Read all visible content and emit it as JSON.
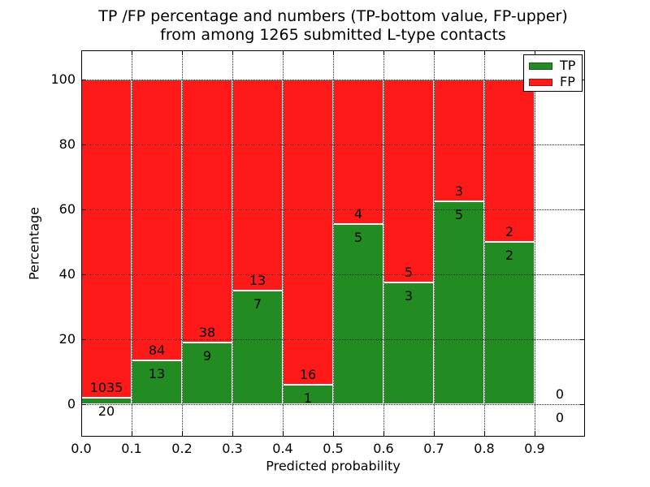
{
  "chart_data": {
    "type": "bar",
    "stacked": true,
    "title_lines": [
      "TP /FP percentage and numbers (TP-bottom value, FP-upper)",
      "from among 1265 submitted L-type contacts"
    ],
    "xlabel": "Predicted probability",
    "ylabel": "Percentage",
    "xlim": [
      0.0,
      1.0
    ],
    "ylim": [
      -10,
      110
    ],
    "grid": true,
    "bar_width": 0.1,
    "colors": {
      "tp": "#228b22",
      "fp": "#ff1a1a",
      "bar_edge": "#ffffff",
      "text": "#000000"
    },
    "legend": {
      "position": "upper right",
      "entries": [
        {
          "label": "TP",
          "color_key": "tp"
        },
        {
          "label": "FP",
          "color_key": "fp"
        }
      ]
    },
    "xticks": [
      {
        "v": 0.0,
        "label": "0.0"
      },
      {
        "v": 0.1,
        "label": "0.1"
      },
      {
        "v": 0.2,
        "label": "0.2"
      },
      {
        "v": 0.3,
        "label": "0.3"
      },
      {
        "v": 0.4,
        "label": "0.4"
      },
      {
        "v": 0.5,
        "label": "0.5"
      },
      {
        "v": 0.6,
        "label": "0.6"
      },
      {
        "v": 0.7,
        "label": "0.7"
      },
      {
        "v": 0.8,
        "label": "0.8"
      },
      {
        "v": 0.9,
        "label": "0.9"
      }
    ],
    "yticks": [
      {
        "v": 0,
        "label": "0"
      },
      {
        "v": 20,
        "label": "20"
      },
      {
        "v": 40,
        "label": "40"
      },
      {
        "v": 60,
        "label": "60"
      },
      {
        "v": 80,
        "label": "80"
      },
      {
        "v": 100,
        "label": "100"
      }
    ],
    "bins": [
      {
        "x_start": 0.0,
        "x_end": 0.1,
        "tp_count": 20,
        "fp_count": 1035,
        "tp_pct": 1.9,
        "fp_pct": 98.1
      },
      {
        "x_start": 0.1,
        "x_end": 0.2,
        "tp_count": 13,
        "fp_count": 84,
        "tp_pct": 13.4,
        "fp_pct": 86.6
      },
      {
        "x_start": 0.2,
        "x_end": 0.3,
        "tp_count": 9,
        "fp_count": 38,
        "tp_pct": 19.1,
        "fp_pct": 80.9
      },
      {
        "x_start": 0.3,
        "x_end": 0.4,
        "tp_count": 7,
        "fp_count": 13,
        "tp_pct": 35.0,
        "fp_pct": 65.0
      },
      {
        "x_start": 0.4,
        "x_end": 0.5,
        "tp_count": 1,
        "fp_count": 16,
        "tp_pct": 5.9,
        "fp_pct": 94.1
      },
      {
        "x_start": 0.5,
        "x_end": 0.6,
        "tp_count": 5,
        "fp_count": 4,
        "tp_pct": 55.6,
        "fp_pct": 44.4
      },
      {
        "x_start": 0.6,
        "x_end": 0.7,
        "tp_count": 3,
        "fp_count": 5,
        "tp_pct": 37.5,
        "fp_pct": 62.5
      },
      {
        "x_start": 0.7,
        "x_end": 0.8,
        "tp_count": 5,
        "fp_count": 3,
        "tp_pct": 62.5,
        "fp_pct": 37.5
      },
      {
        "x_start": 0.8,
        "x_end": 0.9,
        "tp_count": 2,
        "fp_count": 2,
        "tp_pct": 50.0,
        "fp_pct": 50.0
      },
      {
        "x_start": 0.9,
        "x_end": 1.0,
        "tp_count": 0,
        "fp_count": 0,
        "tp_pct": 0,
        "fp_pct": 0
      }
    ]
  }
}
